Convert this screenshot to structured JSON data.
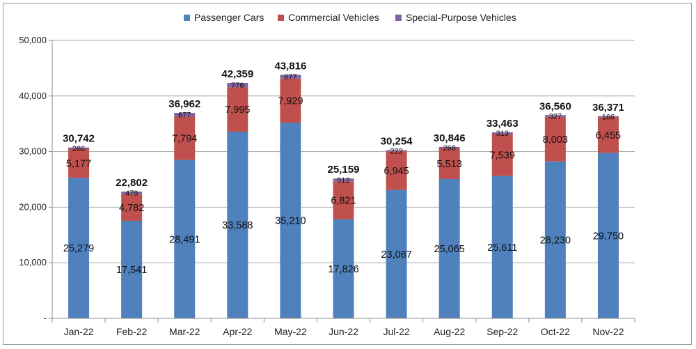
{
  "chart_data": {
    "type": "bar",
    "stacked": true,
    "categories": [
      "Jan-22",
      "Feb-22",
      "Mar-22",
      "Apr-22",
      "May-22",
      "Jun-22",
      "Jul-22",
      "Aug-22",
      "Sep-22",
      "Oct-22",
      "Nov-22"
    ],
    "series": [
      {
        "name": "Passenger Cars",
        "color": "#4f81bd",
        "values": [
          25279,
          17541,
          28491,
          33588,
          35210,
          17826,
          23087,
          25065,
          25611,
          28230,
          29750
        ],
        "labels": [
          "25,279",
          "17,541",
          "28,491",
          "33,588",
          "35,210",
          "17,826",
          "23,087",
          "25,065",
          "25,611",
          "28,230",
          "29,750"
        ]
      },
      {
        "name": "Commercial Vehicles",
        "color": "#c0504d",
        "values": [
          5177,
          4782,
          7794,
          7995,
          7929,
          6821,
          6945,
          5513,
          7539,
          8003,
          6455
        ],
        "labels": [
          "5,177",
          "4,782",
          "7,794",
          "7,995",
          "7,929",
          "6,821",
          "6,945",
          "5,513",
          "7,539",
          "8,003",
          "6,455"
        ]
      },
      {
        "name": "Special-Purpose Vehicles",
        "color": "#8064a2",
        "values": [
          286,
          479,
          677,
          776,
          677,
          512,
          222,
          268,
          313,
          327,
          166
        ],
        "labels": [
          "286",
          "479",
          "677",
          "776",
          "677",
          "512",
          "222",
          "268",
          "313",
          "327",
          "166"
        ]
      }
    ],
    "totals": [
      "30,742",
      "22,802",
      "36,962",
      "42,359",
      "43,816",
      "25,159",
      "30,254",
      "30,846",
      "33,463",
      "36,560",
      "36,371"
    ],
    "ylim": [
      0,
      50000
    ],
    "yticks": [
      "-",
      "10,000",
      "20,000",
      "30,000",
      "40,000",
      "50,000"
    ],
    "grid": true,
    "legend_position": "top",
    "title": "",
    "xlabel": "",
    "ylabel": ""
  }
}
